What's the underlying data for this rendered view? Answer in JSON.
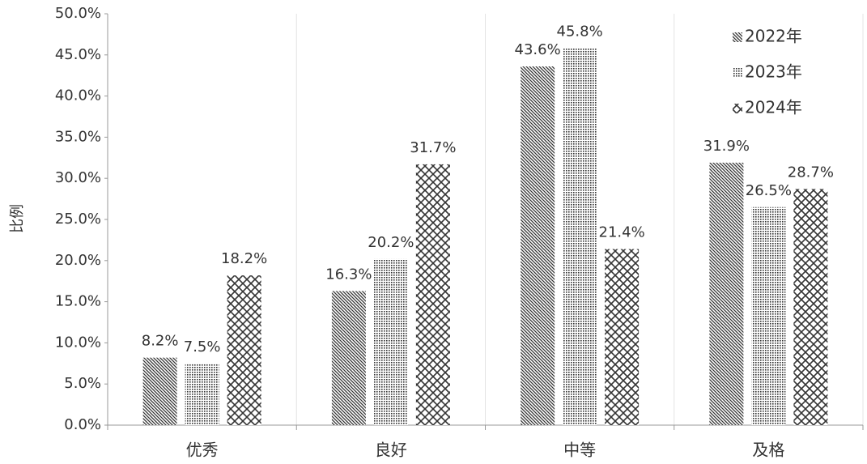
{
  "chart_data": {
    "type": "bar",
    "y_label": "比例",
    "categories": [
      "优秀",
      "良好",
      "中等",
      "及格"
    ],
    "series": [
      {
        "name": "2022年",
        "color": "#333333",
        "values": [
          8.2,
          16.3,
          43.6,
          31.9
        ],
        "value_labels": [
          "8.2%",
          "16.3%",
          "43.6%",
          "31.9%"
        ]
      },
      {
        "name": "2023年",
        "color": "#333333",
        "values": [
          7.5,
          20.2,
          45.8,
          26.5
        ],
        "value_labels": [
          "7.5%",
          "20.2%",
          "45.8%",
          "26.5%"
        ]
      },
      {
        "name": "2024年",
        "color": "#333333",
        "values": [
          18.2,
          31.7,
          21.4,
          28.7
        ],
        "value_labels": [
          "18.2%",
          "31.7%",
          "21.4%",
          "28.7%"
        ]
      }
    ],
    "ylim": [
      0,
      50
    ],
    "yticks": [
      {
        "value": 0,
        "label": "0.0%"
      },
      {
        "value": 5,
        "label": "5.0%"
      },
      {
        "value": 10,
        "label": "10.0%"
      },
      {
        "value": 15,
        "label": "15.0%"
      },
      {
        "value": 20,
        "label": "20.0%"
      },
      {
        "value": 25,
        "label": "25.0%"
      },
      {
        "value": 30,
        "label": "30.0%"
      },
      {
        "value": 35,
        "label": "35.0%"
      },
      {
        "value": 40,
        "label": "40.0%"
      },
      {
        "value": 45,
        "label": "45.0%"
      },
      {
        "value": 50,
        "label": "50.0%"
      }
    ],
    "legend": "top-right"
  }
}
